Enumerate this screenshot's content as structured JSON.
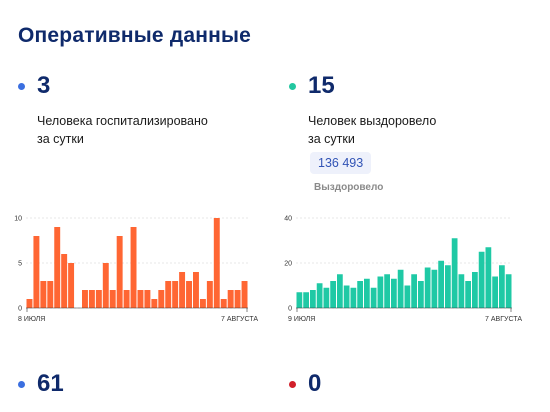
{
  "title": "Оперативные данные",
  "stats": {
    "hospitalized": {
      "value": "3",
      "line1": "Человека госпитализировано",
      "line2": "за сутки",
      "dot_color": "#3b6fe0"
    },
    "recovered": {
      "value": "15",
      "line1": "Человек выздоровело",
      "line2": "за сутки",
      "total": "136 493",
      "total_label": "Выздоровело",
      "dot_color": "#22c7a0"
    },
    "third": {
      "value": "61",
      "dot_color": "#3b6fe0"
    },
    "fourth": {
      "value": "0",
      "dot_color": "#d11f2a"
    }
  },
  "chart_data": [
    {
      "type": "bar",
      "name": "hospitalized",
      "color": "#ff6633",
      "values": [
        1,
        8,
        3,
        3,
        9,
        6,
        5,
        0,
        2,
        2,
        2,
        5,
        2,
        8,
        2,
        9,
        2,
        2,
        1,
        2,
        3,
        3,
        4,
        3,
        4,
        1,
        3,
        10,
        1,
        2,
        2,
        3
      ],
      "yticks": [
        0,
        5,
        10
      ],
      "ylim": [
        0,
        10
      ],
      "xlabel_start": "8 ИЮЛЯ",
      "xlabel_end": "7 АВГУСТА"
    },
    {
      "type": "bar",
      "name": "recovered",
      "color": "#1fc9a5",
      "values": [
        7,
        7,
        8,
        11,
        9,
        12,
        15,
        10,
        9,
        12,
        13,
        9,
        14,
        15,
        13,
        17,
        10,
        15,
        12,
        18,
        17,
        21,
        19,
        31,
        15,
        12,
        16,
        25,
        27,
        14,
        19,
        15
      ],
      "yticks": [
        0,
        20,
        40
      ],
      "ylim": [
        0,
        40
      ],
      "xlabel_start": "9 ИЮЛЯ",
      "xlabel_end": "7 АВГУСТА"
    }
  ]
}
